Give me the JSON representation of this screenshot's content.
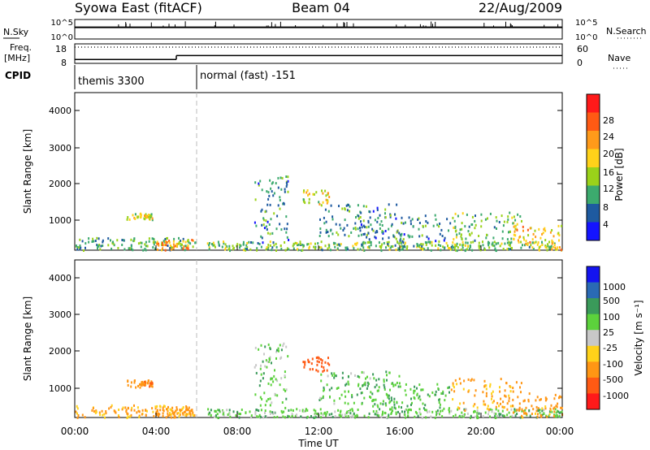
{
  "header": {
    "left": "Syowa East (fitACF)",
    "center": "Beam 04",
    "right": "22/Aug/2009"
  },
  "nsky_panel": {
    "left_label": "N.Sky",
    "left_ticks": [
      "10^5",
      "10^0"
    ],
    "right_ticks": [
      "10^5",
      "10^0"
    ],
    "right_label": "N.Search"
  },
  "freq_panel": {
    "left_label_1": "Freq.",
    "left_label_2": "[MHz]",
    "left_ticks": [
      "18",
      "8"
    ],
    "right_ticks": [
      "60",
      "0"
    ],
    "right_label": "Nave"
  },
  "cpid": {
    "label": "CPID",
    "segments": [
      {
        "name": "themis 3300",
        "start_hour": 0,
        "end_hour": 6
      },
      {
        "name": "normal (fast) -151",
        "start_hour": 6,
        "end_hour": 24
      }
    ]
  },
  "axes": {
    "ylabel": "Slant Range [km]",
    "xlabel": "Time UT",
    "yticks": [
      "4000",
      "3000",
      "2000",
      "1000"
    ],
    "xticks": [
      "00:00",
      "04:00",
      "08:00",
      "12:00",
      "16:00",
      "20:00",
      "00:00"
    ]
  },
  "power_colorbar": {
    "label": "Power [dB]",
    "ticks": [
      "28",
      "24",
      "20",
      "16",
      "12",
      "8",
      "4"
    ],
    "colors": [
      "#ff1a1a",
      "#ff5a14",
      "#ff9a1a",
      "#ffd21a",
      "#9ad21a",
      "#3caa6e",
      "#1e5aa0",
      "#1414ff"
    ]
  },
  "velocity_colorbar": {
    "label": "Velocity [m s⁻¹]",
    "ticks": [
      "1000",
      "500",
      "100",
      "25",
      "-25",
      "-100",
      "-500",
      "-1000"
    ],
    "colors": [
      "#1414f0",
      "#2a6ab4",
      "#3a9a5a",
      "#5cd23c",
      "#c8c8c8",
      "#ffd21a",
      "#ff9614",
      "#ff5a14",
      "#ff1a1a"
    ]
  },
  "chart_data": {
    "type": "heatmap",
    "title": "Syowa East (fitACF)",
    "xlabel": "Time UT",
    "ylabel": "Slant Range [km]",
    "x_range_hours": [
      0,
      24
    ],
    "y_range_km": [
      180,
      4600
    ],
    "power_range_db": [
      0,
      30
    ],
    "velocity_range_ms": [
      -1000,
      1000
    ],
    "echo_regions": [
      {
        "t0": 0.0,
        "t1": 6.0,
        "r0": 200,
        "r1": 550,
        "power": 10,
        "vel": -110
      },
      {
        "t0": 2.5,
        "t1": 3.8,
        "r0": 1050,
        "r1": 1250,
        "power": 14,
        "vel": -400
      },
      {
        "t0": 3.3,
        "t1": 3.8,
        "r0": 1080,
        "r1": 1220,
        "power": 18,
        "vel": -500
      },
      {
        "t0": 4.0,
        "t1": 5.8,
        "r0": 200,
        "r1": 500,
        "power": 20,
        "vel": -150
      },
      {
        "t0": 6.5,
        "t1": 24.0,
        "r0": 200,
        "r1": 450,
        "power": 12,
        "vel": 60
      },
      {
        "t0": 8.8,
        "t1": 10.5,
        "r0": 400,
        "r1": 2300,
        "power": 8,
        "vel": 60
      },
      {
        "t0": 11.2,
        "t1": 12.5,
        "r0": 1500,
        "r1": 1900,
        "power": 16,
        "vel": -700
      },
      {
        "t0": 12.0,
        "t1": 16.0,
        "r0": 600,
        "r1": 1500,
        "power": 8,
        "vel": 80
      },
      {
        "t0": 14.0,
        "t1": 18.5,
        "r0": 300,
        "r1": 1200,
        "power": 8,
        "vel": 90
      },
      {
        "t0": 18.5,
        "t1": 22.0,
        "r0": 400,
        "r1": 1300,
        "power": 12,
        "vel": -110
      },
      {
        "t0": 21.5,
        "t1": 24.0,
        "r0": 200,
        "r1": 900,
        "power": 18,
        "vel": -150
      }
    ],
    "freq_mhz": [
      {
        "t0": 0,
        "t1": 5.0,
        "value": 10.0
      },
      {
        "t0": 5.0,
        "t1": 6.0,
        "value": 12.0
      },
      {
        "t0": 6.0,
        "t1": 24,
        "value": 12.0
      }
    ],
    "nave_level": 40,
    "nsky_level": 0.6
  }
}
